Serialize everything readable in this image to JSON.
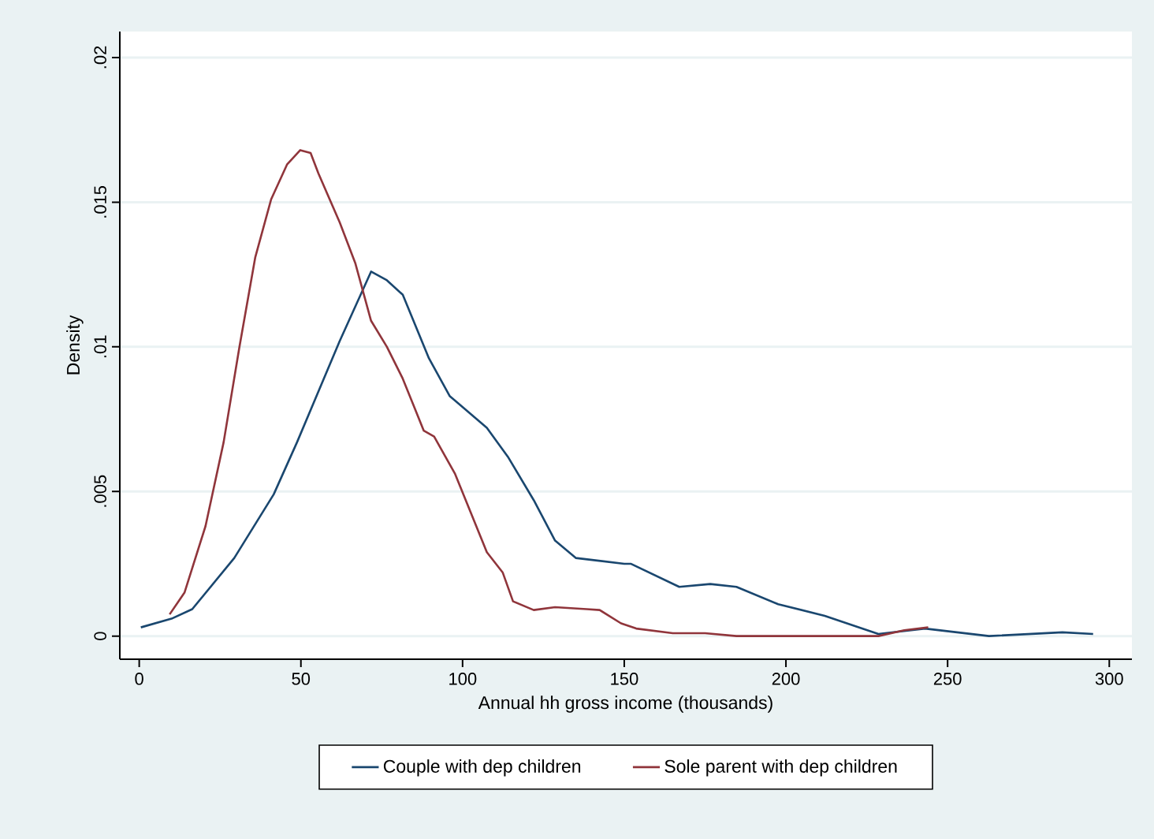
{
  "chart_data": {
    "type": "line",
    "xlabel": "Annual hh gross income (thousands)",
    "ylabel": "Density",
    "xlim": [
      -6,
      307
    ],
    "ylim": [
      -0.0008,
      0.0209
    ],
    "xticks": [
      0,
      50,
      100,
      150,
      200,
      250,
      300
    ],
    "yticks": [
      {
        "value": 0,
        "label": "0"
      },
      {
        "value": 0.005,
        "label": ".005"
      },
      {
        "value": 0.01,
        "label": ".01"
      },
      {
        "value": 0.015,
        "label": ".015"
      },
      {
        "value": 0.02,
        "label": ".02"
      }
    ],
    "grid": "y",
    "legend": "bottom",
    "marker": "none",
    "line_style": "solid",
    "series": [
      {
        "name": "Couple with dep children",
        "color": "#1a476f",
        "x": [
          0.5,
          10,
          16.4,
          29.4,
          41.6,
          48.8,
          62,
          71.7,
          76.6,
          81.5,
          89.6,
          96,
          107.5,
          114,
          122,
          128.6,
          135,
          150,
          152,
          167,
          176.6,
          184.7,
          197.6,
          212,
          228.6,
          243,
          262.8,
          285.5,
          295
        ],
        "values": [
          0.0003,
          0.0006,
          0.00093,
          0.0027,
          0.0049,
          0.0067,
          0.0102,
          0.0126,
          0.0123,
          0.0118,
          0.0096,
          0.0083,
          0.0072,
          0.0062,
          0.0047,
          0.0033,
          0.0027,
          0.0025,
          0.0025,
          0.0017,
          0.0018,
          0.0017,
          0.0011,
          0.0007,
          7e-05,
          0.00026,
          0,
          0.00013,
          7e-05
        ]
      },
      {
        "name": "Sole parent with dep children",
        "color": "#90353b",
        "x": [
          9.4,
          14,
          20.5,
          26.1,
          31,
          35.9,
          40.8,
          45.7,
          49.8,
          53,
          55.4,
          62,
          66.8,
          71.7,
          76.6,
          81.5,
          88,
          91.2,
          97.7,
          107.5,
          112.4,
          115.6,
          122,
          128.6,
          138.4,
          142.4,
          149,
          153.7,
          165,
          175,
          184.7,
          228.6,
          236.6,
          244
        ],
        "values": [
          0.00075,
          0.0015,
          0.0038,
          0.0067,
          0.01,
          0.0131,
          0.0151,
          0.0163,
          0.0168,
          0.0167,
          0.016,
          0.0143,
          0.0129,
          0.0109,
          0.01,
          0.0089,
          0.0071,
          0.0069,
          0.0056,
          0.0029,
          0.0022,
          0.0012,
          0.0009,
          0.001,
          0.00093,
          0.0009,
          0.00044,
          0.00026,
          0.0001,
          0.0001,
          0,
          0,
          0.0002,
          0.0003
        ]
      }
    ]
  }
}
